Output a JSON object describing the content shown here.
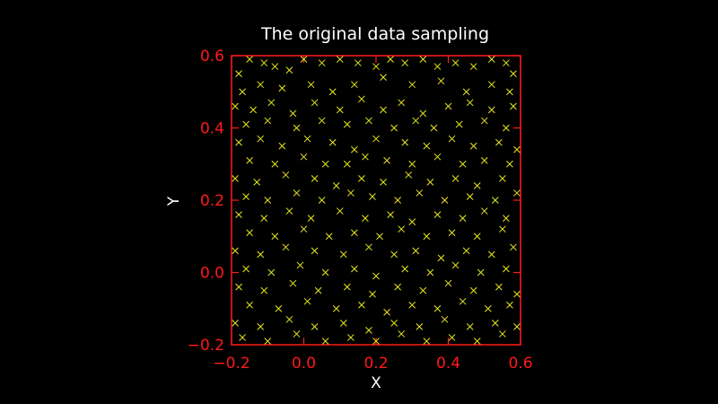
{
  "chart_data": {
    "type": "scatter",
    "title": "The original data sampling",
    "xlabel": "X",
    "ylabel": "Y",
    "xlim": [
      -0.2,
      0.6
    ],
    "ylim": [
      -0.2,
      0.6
    ],
    "xticks": [
      "−0.2",
      "0.0",
      "0.2",
      "0.4",
      "0.6"
    ],
    "yticks": [
      "−0.2",
      "0.0",
      "0.2",
      "0.4",
      "0.6"
    ],
    "grid": false,
    "legend": "none",
    "marker": "x",
    "colors": {
      "frame": "#ff1a1a",
      "points": "#e6e61e",
      "background": "#000000",
      "text": "#ffffff"
    },
    "series": [
      {
        "points": [
          [
            -0.18,
            0.55
          ],
          [
            -0.15,
            0.59
          ],
          [
            -0.11,
            0.58
          ],
          [
            -0.08,
            0.57
          ],
          [
            -0.04,
            0.56
          ],
          [
            0.0,
            0.59
          ],
          [
            0.05,
            0.58
          ],
          [
            0.1,
            0.59
          ],
          [
            0.15,
            0.58
          ],
          [
            0.2,
            0.57
          ],
          [
            0.24,
            0.59
          ],
          [
            0.28,
            0.58
          ],
          [
            0.33,
            0.59
          ],
          [
            0.37,
            0.57
          ],
          [
            0.42,
            0.58
          ],
          [
            0.47,
            0.57
          ],
          [
            0.52,
            0.59
          ],
          [
            0.56,
            0.58
          ],
          [
            0.58,
            0.55
          ],
          [
            -0.17,
            0.5
          ],
          [
            -0.12,
            0.52
          ],
          [
            -0.06,
            0.51
          ],
          [
            0.02,
            0.52
          ],
          [
            0.08,
            0.5
          ],
          [
            0.14,
            0.52
          ],
          [
            0.22,
            0.54
          ],
          [
            0.3,
            0.52
          ],
          [
            0.38,
            0.53
          ],
          [
            0.45,
            0.5
          ],
          [
            0.52,
            0.52
          ],
          [
            0.57,
            0.5
          ],
          [
            -0.19,
            0.46
          ],
          [
            -0.14,
            0.45
          ],
          [
            -0.09,
            0.47
          ],
          [
            -0.03,
            0.44
          ],
          [
            0.03,
            0.47
          ],
          [
            0.1,
            0.45
          ],
          [
            0.16,
            0.48
          ],
          [
            0.22,
            0.45
          ],
          [
            0.27,
            0.47
          ],
          [
            0.33,
            0.44
          ],
          [
            0.4,
            0.46
          ],
          [
            0.46,
            0.47
          ],
          [
            0.52,
            0.45
          ],
          [
            0.58,
            0.46
          ],
          [
            -0.16,
            0.41
          ],
          [
            -0.1,
            0.42
          ],
          [
            -0.02,
            0.4
          ],
          [
            0.05,
            0.42
          ],
          [
            0.12,
            0.41
          ],
          [
            0.18,
            0.42
          ],
          [
            0.25,
            0.4
          ],
          [
            0.31,
            0.42
          ],
          [
            0.36,
            0.4
          ],
          [
            0.43,
            0.41
          ],
          [
            0.5,
            0.42
          ],
          [
            0.56,
            0.4
          ],
          [
            -0.18,
            0.36
          ],
          [
            -0.12,
            0.37
          ],
          [
            -0.06,
            0.35
          ],
          [
            0.01,
            0.37
          ],
          [
            0.08,
            0.36
          ],
          [
            0.14,
            0.34
          ],
          [
            0.2,
            0.37
          ],
          [
            0.28,
            0.36
          ],
          [
            0.34,
            0.35
          ],
          [
            0.41,
            0.37
          ],
          [
            0.47,
            0.35
          ],
          [
            0.54,
            0.36
          ],
          [
            0.59,
            0.34
          ],
          [
            -0.15,
            0.31
          ],
          [
            -0.08,
            0.3
          ],
          [
            0.0,
            0.32
          ],
          [
            0.06,
            0.3
          ],
          [
            0.12,
            0.3
          ],
          [
            0.17,
            0.32
          ],
          [
            0.23,
            0.31
          ],
          [
            0.3,
            0.3
          ],
          [
            0.37,
            0.32
          ],
          [
            0.44,
            0.3
          ],
          [
            0.5,
            0.31
          ],
          [
            0.57,
            0.3
          ],
          [
            -0.19,
            0.26
          ],
          [
            -0.13,
            0.25
          ],
          [
            -0.05,
            0.27
          ],
          [
            0.03,
            0.26
          ],
          [
            0.09,
            0.24
          ],
          [
            0.16,
            0.26
          ],
          [
            0.22,
            0.25
          ],
          [
            0.29,
            0.27
          ],
          [
            0.35,
            0.25
          ],
          [
            0.42,
            0.26
          ],
          [
            0.48,
            0.24
          ],
          [
            0.55,
            0.26
          ],
          [
            -0.16,
            0.21
          ],
          [
            -0.1,
            0.2
          ],
          [
            -0.02,
            0.22
          ],
          [
            0.05,
            0.2
          ],
          [
            0.13,
            0.22
          ],
          [
            0.19,
            0.21
          ],
          [
            0.26,
            0.2
          ],
          [
            0.32,
            0.22
          ],
          [
            0.39,
            0.2
          ],
          [
            0.46,
            0.21
          ],
          [
            0.53,
            0.2
          ],
          [
            0.59,
            0.22
          ],
          [
            -0.18,
            0.16
          ],
          [
            -0.11,
            0.15
          ],
          [
            -0.04,
            0.17
          ],
          [
            0.02,
            0.15
          ],
          [
            0.1,
            0.17
          ],
          [
            0.17,
            0.15
          ],
          [
            0.24,
            0.16
          ],
          [
            0.3,
            0.14
          ],
          [
            0.37,
            0.16
          ],
          [
            0.44,
            0.15
          ],
          [
            0.5,
            0.17
          ],
          [
            0.56,
            0.15
          ],
          [
            -0.15,
            0.11
          ],
          [
            -0.08,
            0.1
          ],
          [
            0.0,
            0.12
          ],
          [
            0.07,
            0.1
          ],
          [
            0.14,
            0.11
          ],
          [
            0.21,
            0.1
          ],
          [
            0.27,
            0.12
          ],
          [
            0.34,
            0.1
          ],
          [
            0.41,
            0.11
          ],
          [
            0.48,
            0.1
          ],
          [
            0.55,
            0.12
          ],
          [
            -0.19,
            0.06
          ],
          [
            -0.12,
            0.05
          ],
          [
            -0.05,
            0.07
          ],
          [
            0.03,
            0.06
          ],
          [
            0.11,
            0.05
          ],
          [
            0.18,
            0.07
          ],
          [
            0.25,
            0.05
          ],
          [
            0.31,
            0.06
          ],
          [
            0.38,
            0.04
          ],
          [
            0.45,
            0.06
          ],
          [
            0.52,
            0.05
          ],
          [
            0.58,
            0.07
          ],
          [
            -0.16,
            0.01
          ],
          [
            -0.09,
            0.0
          ],
          [
            -0.01,
            0.02
          ],
          [
            0.06,
            0.0
          ],
          [
            0.14,
            0.01
          ],
          [
            0.2,
            -0.01
          ],
          [
            0.28,
            0.01
          ],
          [
            0.35,
            0.0
          ],
          [
            0.42,
            0.02
          ],
          [
            0.49,
            0.0
          ],
          [
            0.56,
            0.01
          ],
          [
            -0.18,
            -0.04
          ],
          [
            -0.11,
            -0.05
          ],
          [
            -0.03,
            -0.03
          ],
          [
            0.04,
            -0.05
          ],
          [
            0.12,
            -0.04
          ],
          [
            0.19,
            -0.06
          ],
          [
            0.26,
            -0.04
          ],
          [
            0.33,
            -0.05
          ],
          [
            0.4,
            -0.03
          ],
          [
            0.47,
            -0.05
          ],
          [
            0.54,
            -0.04
          ],
          [
            0.59,
            -0.06
          ],
          [
            -0.15,
            -0.09
          ],
          [
            -0.07,
            -0.1
          ],
          [
            0.01,
            -0.08
          ],
          [
            0.09,
            -0.1
          ],
          [
            0.16,
            -0.09
          ],
          [
            0.23,
            -0.11
          ],
          [
            0.3,
            -0.09
          ],
          [
            0.37,
            -0.1
          ],
          [
            0.44,
            -0.08
          ],
          [
            0.51,
            -0.1
          ],
          [
            0.57,
            -0.09
          ],
          [
            -0.19,
            -0.14
          ],
          [
            -0.12,
            -0.15
          ],
          [
            -0.04,
            -0.13
          ],
          [
            0.03,
            -0.15
          ],
          [
            0.11,
            -0.14
          ],
          [
            0.18,
            -0.16
          ],
          [
            0.25,
            -0.14
          ],
          [
            0.32,
            -0.15
          ],
          [
            0.39,
            -0.13
          ],
          [
            0.46,
            -0.15
          ],
          [
            0.53,
            -0.14
          ],
          [
            0.59,
            -0.15
          ],
          [
            -0.17,
            -0.18
          ],
          [
            -0.1,
            -0.19
          ],
          [
            -0.02,
            -0.17
          ],
          [
            0.06,
            -0.19
          ],
          [
            0.13,
            -0.18
          ],
          [
            0.2,
            -0.19
          ],
          [
            0.27,
            -0.17
          ],
          [
            0.34,
            -0.19
          ],
          [
            0.41,
            -0.18
          ],
          [
            0.48,
            -0.19
          ],
          [
            0.55,
            -0.17
          ]
        ]
      }
    ]
  }
}
